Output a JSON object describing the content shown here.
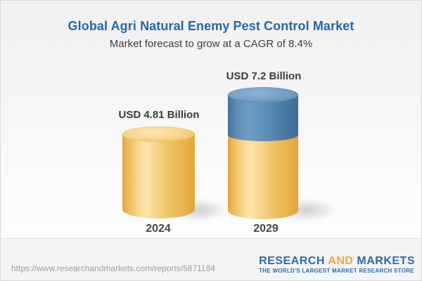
{
  "header": {
    "title": "Global Agri Natural Enemy Pest Control Market",
    "subtitle": "Market forecast to grow at a CAGR of 8.4%"
  },
  "chart_data": {
    "type": "bar",
    "chart_style": "3d-cylinder",
    "unit": "USD Billion",
    "categories": [
      "2024",
      "2029"
    ],
    "values": [
      4.81,
      7.2
    ],
    "cagr_percent": 8.4,
    "gridlines": false,
    "y_axis_visible": false,
    "legend": "none",
    "bars": [
      {
        "category": "2024",
        "value": 4.81,
        "label": "USD 4.81 Billion",
        "segments": [
          {
            "name": "base-market",
            "value": 4.81,
            "color": "#f2c566"
          }
        ]
      },
      {
        "category": "2029",
        "value": 7.2,
        "label": "USD 7.2 Billion",
        "segments": [
          {
            "name": "base-market",
            "value": 4.81,
            "color": "#f2c566"
          },
          {
            "name": "forecast-growth",
            "value": 2.39,
            "color": "#5a8cb5"
          }
        ]
      }
    ]
  },
  "footer": {
    "url": "https://www.researchandmarkets.com/reports/5871184",
    "logo": {
      "word1": "RESEARCH",
      "word2": "AND",
      "word3": "MARKETS",
      "tagline": "THE WORLD'S LARGEST MARKET RESEARCH STORE"
    }
  },
  "colors": {
    "title_blue": "#2169a8",
    "text_dark": "#3c3c3c",
    "bar_gold": "#f2c566",
    "bar_blue": "#5a8cb5",
    "url_gray": "#9d9d9d",
    "logo_blue": "#2d6ca3",
    "logo_orange": "#f0a634",
    "background_top": "#f1f1f2",
    "background_bottom": "#fdfdfd"
  }
}
